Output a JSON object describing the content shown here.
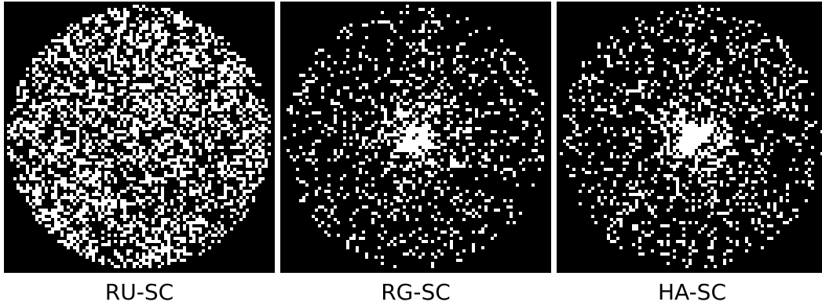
{
  "figure": {
    "background_color": "#000000",
    "point_color": "#ffffff",
    "panels": [
      {
        "label": "RU-SC",
        "pattern": "uniform",
        "density": 0.42
      },
      {
        "label": "RG-SC",
        "pattern": "gaussian",
        "density": 0.26
      },
      {
        "label": "HA-SC",
        "pattern": "gaussian",
        "density": 0.3
      }
    ]
  }
}
